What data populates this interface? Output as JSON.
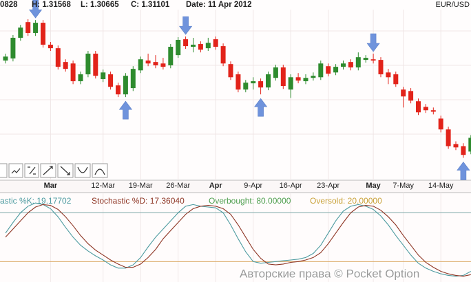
{
  "chart_data": {
    "type": "candlestick",
    "header": {
      "open": "0828",
      "high": "H: 1.31568",
      "low": "L: 1.30665",
      "close": "C: 1.31101",
      "date": "Date: 11 Apr 2012",
      "symbol": "EUR/USD"
    },
    "categories": [
      null,
      null,
      null,
      null,
      null,
      null,
      "Mar",
      null,
      null,
      null,
      null,
      null,
      null,
      "12-Mar",
      null,
      null,
      null,
      null,
      "19-Mar",
      null,
      null,
      null,
      null,
      "26-Mar",
      null,
      null,
      null,
      null,
      "Apr",
      null,
      null,
      null,
      null,
      "9-Apr",
      null,
      null,
      null,
      null,
      "16-Apr",
      null,
      null,
      null,
      null,
      "23-Apr",
      null,
      null,
      null,
      null,
      null,
      "May",
      null,
      null,
      null,
      "7-May",
      null,
      null,
      null,
      null,
      "14-May",
      null,
      null,
      null,
      null
    ],
    "open": [
      1.316,
      1.317,
      1.3269,
      1.3344,
      1.3292,
      1.3341,
      1.3236,
      1.3219,
      1.3153,
      1.3146,
      1.3061,
      1.3094,
      1.3193,
      1.3071,
      1.3094,
      1.3041,
      1.2998,
      1.3028,
      1.3113,
      1.316,
      1.3153,
      1.3146,
      1.3137,
      1.3186,
      1.3262,
      1.3226,
      1.3239,
      1.3219,
      1.3262,
      1.3229,
      1.3143,
      1.3094,
      1.3021,
      1.3051,
      1.3061,
      1.3031,
      1.3077,
      1.3127,
      1.3021,
      1.308,
      1.3061,
      1.3077,
      1.308,
      1.3133,
      1.3103,
      1.313,
      1.3153,
      1.3127,
      1.3163,
      1.3166,
      1.3163,
      1.3103,
      1.3094,
      1.3021,
      1.3014,
      1.2965,
      1.2938,
      1.2922,
      1.2882,
      1.283,
      1.276,
      1.275,
      1.2724
    ],
    "high": [
      1.3193,
      1.3282,
      1.3331,
      1.3358,
      1.3354,
      1.3354,
      1.3249,
      1.3232,
      1.3166,
      1.316,
      1.3107,
      1.3206,
      1.3206,
      1.3117,
      1.3107,
      1.3054,
      1.31,
      1.3133,
      1.3179,
      1.3193,
      1.3186,
      1.3173,
      1.3239,
      1.3272,
      1.3275,
      1.3269,
      1.3252,
      1.3269,
      1.3275,
      1.3242,
      1.3156,
      1.3107,
      1.3067,
      1.308,
      1.3074,
      1.3107,
      1.314,
      1.314,
      1.3094,
      1.31,
      1.3094,
      1.3103,
      1.316,
      1.3146,
      1.3143,
      1.316,
      1.3166,
      1.3199,
      1.3186,
      1.3193,
      1.3176,
      1.312,
      1.3107,
      1.3034,
      1.3028,
      1.2978,
      1.2952,
      1.2935,
      1.2896,
      1.2843,
      1.2773,
      1.2764,
      1.2803
    ],
    "low": [
      1.3146,
      1.3156,
      1.3255,
      1.3278,
      1.3278,
      1.3222,
      1.3206,
      1.3117,
      1.3107,
      1.3047,
      1.3047,
      1.308,
      1.3074,
      1.3057,
      1.3021,
      1.2985,
      1.2985,
      1.3014,
      1.31,
      1.3133,
      1.3123,
      1.3117,
      1.3123,
      1.3173,
      1.3216,
      1.3199,
      1.3199,
      1.3206,
      1.3212,
      1.3133,
      1.3067,
      1.3008,
      1.3008,
      1.3021,
      1.2998,
      1.3018,
      1.3064,
      1.3024,
      1.2981,
      1.3051,
      1.3047,
      1.3064,
      1.3067,
      1.3084,
      1.309,
      1.3117,
      1.3113,
      1.3113,
      1.315,
      1.3146,
      1.308,
      1.3047,
      1.3034,
      1.2935,
      1.2955,
      1.2899,
      1.2909,
      1.2902,
      1.2816,
      1.2737,
      1.2731,
      1.2694,
      1.2711
    ],
    "close": [
      1.3179,
      1.3269,
      1.3318,
      1.3292,
      1.3341,
      1.3236,
      1.3219,
      1.313,
      1.312,
      1.3061,
      1.3094,
      1.3193,
      1.3087,
      1.3103,
      1.3034,
      1.2998,
      1.3087,
      1.312,
      1.3166,
      1.3146,
      1.3137,
      1.313,
      1.3226,
      1.3259,
      1.3229,
      1.3236,
      1.3212,
      1.3245,
      1.3226,
      1.3146,
      1.308,
      1.3021,
      1.3054,
      1.3061,
      1.3031,
      1.3094,
      1.3127,
      1.3038,
      1.308,
      1.3064,
      1.3077,
      1.3087,
      1.3146,
      1.3097,
      1.313,
      1.3146,
      1.3127,
      1.3176,
      1.3173,
      1.316,
      1.3094,
      1.308,
      1.3047,
      1.2988,
      1.2968,
      1.2912,
      1.2922,
      1.2915,
      1.283,
      1.275,
      1.2744,
      1.2708,
      1.279
    ],
    "up_color": "#2e8b2e",
    "down_color": "#e2231a",
    "ylim": [
      1.26,
      1.345
    ],
    "signals": [
      {
        "index": 4,
        "direction": "down"
      },
      {
        "index": 16,
        "direction": "up"
      },
      {
        "index": 24,
        "direction": "down"
      },
      {
        "index": 34,
        "direction": "up"
      },
      {
        "index": 49,
        "direction": "down"
      },
      {
        "index": 61,
        "direction": "up"
      }
    ],
    "signal_color": "#6f93dc",
    "stochastic": {
      "ylim": [
        0,
        100
      ],
      "series": [
        {
          "label": "astic %K: 19.17702",
          "color": "#4d9ba0",
          "values": [
            55,
            68,
            80,
            88,
            92,
            90,
            85,
            75,
            62,
            50,
            40,
            33,
            27,
            22,
            16,
            12,
            12,
            16,
            25,
            38,
            50,
            60,
            70,
            80,
            88,
            90,
            88,
            87,
            86,
            80,
            65,
            48,
            32,
            20,
            18,
            19,
            20,
            21,
            22,
            23,
            25,
            30,
            40,
            55,
            70,
            82,
            88,
            90,
            88,
            84,
            76,
            65,
            52,
            40,
            28,
            18,
            12,
            8,
            5,
            3,
            2,
            3,
            8
          ]
        },
        {
          "label": "Stochastic %D: 17.36040",
          "color": "#8e3524",
          "values": [
            50,
            60,
            70,
            80,
            87,
            90,
            89,
            84,
            75,
            64,
            52,
            42,
            34,
            28,
            22,
            17,
            13,
            13,
            17,
            25,
            35,
            48,
            58,
            68,
            78,
            85,
            88,
            89,
            88,
            85,
            78,
            65,
            50,
            35,
            24,
            17,
            16,
            17,
            19,
            20,
            22,
            25,
            31,
            42,
            55,
            68,
            80,
            87,
            89,
            88,
            83,
            75,
            65,
            52,
            40,
            28,
            19,
            13,
            8,
            5,
            3,
            2,
            4
          ]
        }
      ],
      "levels": [
        {
          "label": "Overbought: 80.00000",
          "value": 80,
          "color": "#7aa6a6",
          "text_color": "#4f9f4f"
        },
        {
          "label": "Oversold: 20.00000",
          "value": 20,
          "color": "#dba965",
          "text_color": "#c9a23a"
        }
      ]
    },
    "watermark": "Авторские права © Pocket Option"
  }
}
